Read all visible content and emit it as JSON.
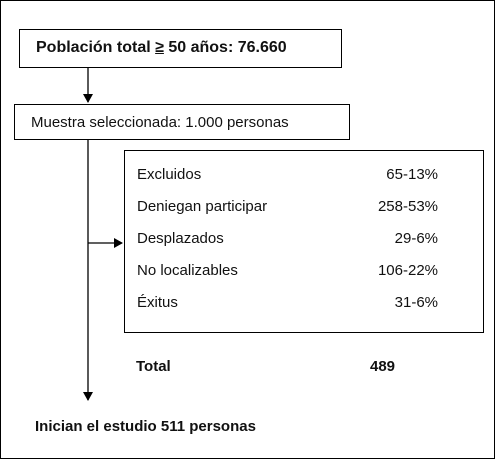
{
  "population": {
    "prefix": "Población total ",
    "operator": "≥",
    "suffix": " 50 años: 76.660"
  },
  "sample": {
    "label": "Muestra seleccionada: 1.000 personas"
  },
  "exclusions": {
    "rows": [
      {
        "label": "Excluidos",
        "value": "65-13%"
      },
      {
        "label": "Deniegan participar",
        "value": "258-53%"
      },
      {
        "label": "Desplazados",
        "value": "29-6%"
      },
      {
        "label": "No localizables",
        "value": "106-22%"
      },
      {
        "label": "Éxitus",
        "value": "31-6%"
      }
    ]
  },
  "total": {
    "label": "Total",
    "value": "489"
  },
  "result": {
    "label": "Inician el estudio 511 personas"
  }
}
